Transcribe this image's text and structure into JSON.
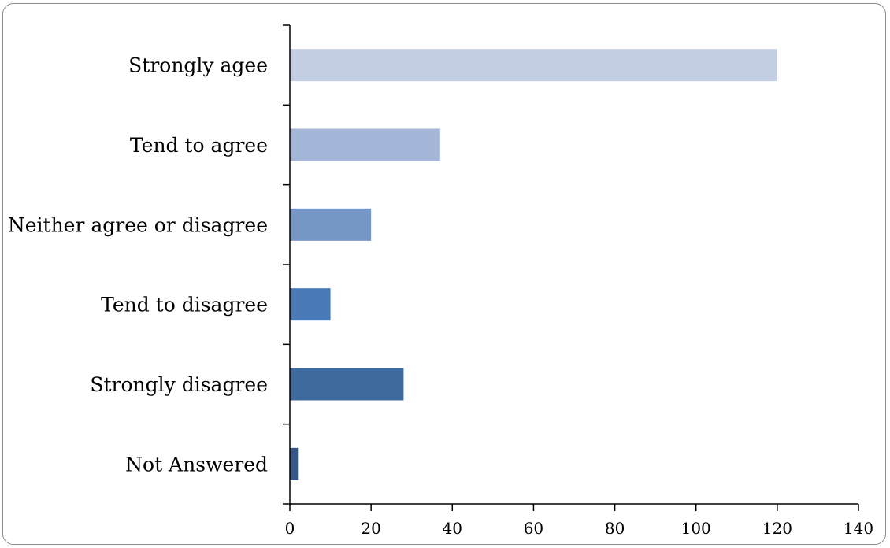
{
  "chart_data": {
    "type": "bar",
    "orientation": "horizontal",
    "categories": [
      "Strongly agee",
      "Tend to agree",
      "Neither agree or disagree",
      "Tend to disagree",
      "Strongly disagree",
      "Not Answered"
    ],
    "values": [
      120,
      37,
      20,
      10,
      28,
      2
    ],
    "bar_colors": [
      "#c3cee3",
      "#a4b6d7",
      "#7696c6",
      "#4a7ab6",
      "#3f6a9e",
      "#36578a"
    ],
    "xlim": [
      0,
      140
    ],
    "xticks": [
      "0",
      "20",
      "40",
      "60",
      "80",
      "100",
      "120",
      "140"
    ],
    "title": "",
    "xlabel": "",
    "ylabel": "",
    "grid": false,
    "legend": "none"
  }
}
